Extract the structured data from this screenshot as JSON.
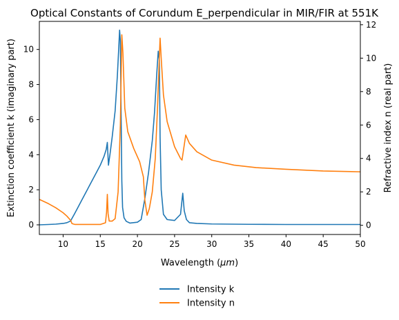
{
  "chart_data": {
    "type": "line",
    "title": "Optical Constants of Corundum E_perpendicular in MIR/FIR at 551K",
    "xlabel": "Wavelength (",
    "xlabel_unit": "μm",
    "xlabel_close": ")",
    "ylabel_left": "Extinction coefficient k (imaginary part)",
    "ylabel_right": "Refractive index n (real part)",
    "xlim": [
      6.8,
      50
    ],
    "ylim_left": [
      -0.55,
      11.6
    ],
    "ylim_right": [
      -0.55,
      12.2
    ],
    "x_ticks": [
      "10",
      "15",
      "20",
      "25",
      "30",
      "35",
      "40",
      "45",
      "50"
    ],
    "y_ticks_left": [
      "0",
      "2",
      "4",
      "6",
      "8",
      "10"
    ],
    "y_ticks_right": [
      "0",
      "2",
      "4",
      "6",
      "8",
      "10",
      "12"
    ],
    "grid": false,
    "legend_position": "below",
    "colors": {
      "k": "#1f77b4",
      "n": "#ff7f0e"
    },
    "series": [
      {
        "name": "Intensity k",
        "axis": "left",
        "x": [
          6.8,
          8,
          9,
          10,
          10.5,
          11,
          11.5,
          12,
          12.5,
          13,
          13.5,
          14,
          14.5,
          15,
          15.5,
          15.8,
          15.95,
          16.1,
          16.3,
          16.6,
          17,
          17.3,
          17.5,
          17.6,
          17.7,
          17.8,
          17.9,
          18,
          18.2,
          18.5,
          19,
          20,
          20.5,
          21,
          21.5,
          22,
          22.3,
          22.6,
          22.8,
          22.95,
          23.05,
          23.2,
          23.5,
          24,
          25,
          25.8,
          26.1,
          26.3,
          26.6,
          27,
          28,
          30,
          35,
          40,
          45,
          50
        ],
        "values": [
          0.0,
          0.02,
          0.04,
          0.08,
          0.12,
          0.22,
          0.6,
          1.0,
          1.4,
          1.8,
          2.2,
          2.6,
          3.0,
          3.4,
          3.9,
          4.3,
          4.7,
          3.4,
          4.0,
          5.0,
          6.5,
          8.5,
          10.2,
          11.1,
          10.5,
          6.5,
          2.5,
          1.0,
          0.4,
          0.2,
          0.1,
          0.15,
          0.3,
          1.5,
          3.0,
          4.8,
          6.4,
          8.6,
          9.9,
          9.4,
          5.0,
          2.0,
          0.6,
          0.3,
          0.25,
          0.6,
          1.8,
          0.8,
          0.3,
          0.12,
          0.08,
          0.05,
          0.03,
          0.02,
          0.02,
          0.02
        ]
      },
      {
        "name": "Intensity n",
        "axis": "right",
        "x": [
          6.8,
          8,
          9,
          10,
          10.5,
          11,
          11.2,
          11.6,
          12,
          13,
          14,
          15,
          15.7,
          15.85,
          15.95,
          16.05,
          16.2,
          16.6,
          17,
          17.4,
          17.7,
          17.9,
          18.05,
          18.3,
          18.7,
          19.5,
          20.3,
          20.8,
          21.0,
          21.3,
          21.6,
          22,
          22.4,
          22.7,
          22.9,
          23.05,
          23.2,
          23.5,
          24,
          25,
          25.8,
          26.0,
          26.2,
          26.5,
          27,
          28,
          30,
          33,
          36,
          40,
          45,
          50
        ],
        "values": [
          1.55,
          1.3,
          1.05,
          0.75,
          0.55,
          0.3,
          0.1,
          0.05,
          0.05,
          0.05,
          0.05,
          0.05,
          0.15,
          0.8,
          1.85,
          0.7,
          0.25,
          0.25,
          0.4,
          2.0,
          6.0,
          11.4,
          10.3,
          7.0,
          5.6,
          4.6,
          3.8,
          2.9,
          1.5,
          0.6,
          1.0,
          2.0,
          4.0,
          7.0,
          9.5,
          11.2,
          10.0,
          7.8,
          6.2,
          4.7,
          4.0,
          3.9,
          4.5,
          5.4,
          4.9,
          4.4,
          3.9,
          3.6,
          3.45,
          3.35,
          3.25,
          3.2
        ]
      }
    ]
  }
}
